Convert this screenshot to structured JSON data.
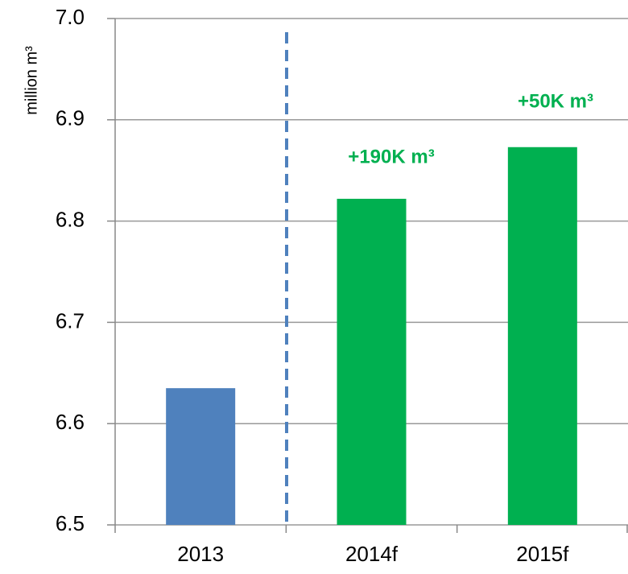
{
  "chart_data": {
    "type": "bar",
    "y_axis_label": "million m³",
    "categories": [
      "2013",
      "2014f",
      "2015f"
    ],
    "values": [
      6.635,
      6.822,
      6.873
    ],
    "colors": [
      "#4f81bd",
      "#00b050",
      "#00b050"
    ],
    "ylim": [
      6.5,
      7.0
    ],
    "yticks": [
      6.5,
      6.6,
      6.7,
      6.8,
      6.9,
      {
        "value": 7.0,
        "label": "7.0"
      }
    ],
    "grid": true,
    "annotations": [
      "+190K m³",
      "+50K m³"
    ]
  }
}
